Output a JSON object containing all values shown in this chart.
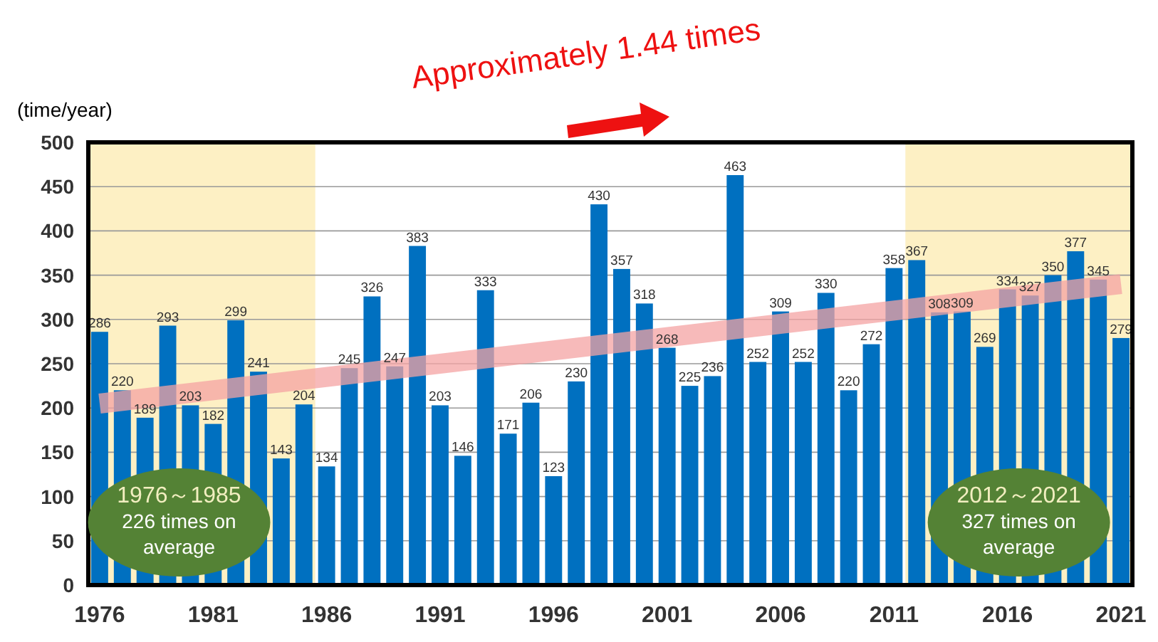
{
  "chart_data": {
    "type": "bar",
    "ylabel": "(time/year)",
    "x": [
      1976,
      1977,
      1978,
      1979,
      1980,
      1981,
      1982,
      1983,
      1984,
      1985,
      1986,
      1987,
      1988,
      1989,
      1990,
      1991,
      1992,
      1993,
      1994,
      1995,
      1996,
      1997,
      1998,
      1999,
      2000,
      2001,
      2002,
      2003,
      2004,
      2005,
      2006,
      2007,
      2008,
      2009,
      2010,
      2011,
      2012,
      2013,
      2014,
      2015,
      2016,
      2017,
      2018,
      2019,
      2020,
      2021
    ],
    "xlim": [
      1975.5,
      2021.5
    ],
    "xticks": [
      1976,
      1981,
      1986,
      1991,
      1996,
      2001,
      2006,
      2011,
      2016,
      2021
    ],
    "series": [
      {
        "color": "#0070c0",
        "values": [
          286,
          220,
          189,
          293,
          203,
          182,
          299,
          241,
          143,
          204,
          134,
          245,
          326,
          247,
          383,
          203,
          146,
          333,
          171,
          206,
          123,
          230,
          430,
          357,
          318,
          268,
          225,
          236,
          463,
          252,
          309,
          252,
          330,
          220,
          272,
          358,
          367,
          308,
          309,
          269,
          334,
          327,
          350,
          377,
          345,
          279
        ],
        "value_labels": [
          "286",
          "220",
          "189",
          "293",
          "203",
          "182",
          "299",
          "241",
          "143",
          "204",
          "134",
          "245",
          "326",
          "247",
          "383",
          "203",
          "146",
          "333",
          "171",
          "206",
          "123",
          "230",
          "430",
          "357",
          "318",
          "268",
          "225",
          "236",
          "463",
          "252",
          "309",
          "252",
          "330",
          "220",
          "272",
          "358",
          "367",
          "308",
          "309",
          "269",
          "334",
          "327",
          "350",
          "377",
          "345",
          "279"
        ]
      },
      {
        "type": "line",
        "color": "#f4a3a3",
        "x": [
          1976,
          2021
        ],
        "values": [
          205,
          340
        ]
      }
    ],
    "ylim": [
      0,
      500
    ],
    "yticks": [
      0,
      50,
      100,
      150,
      200,
      250,
      300,
      350,
      400,
      450,
      500
    ],
    "grid": "y",
    "bands": [
      {
        "axis": "x",
        "from": 1975.5,
        "to": 1985.5,
        "label": "1976～1985\n226 times on\naverage",
        "color": "#fdf0c4"
      },
      {
        "axis": "x",
        "from": 2011.5,
        "to": 2021.5,
        "label": "2012～2021\n327 times on\naverage",
        "color": "#fdf0c4"
      }
    ],
    "annotations": [
      "Approximately 1.44 times"
    ]
  }
}
